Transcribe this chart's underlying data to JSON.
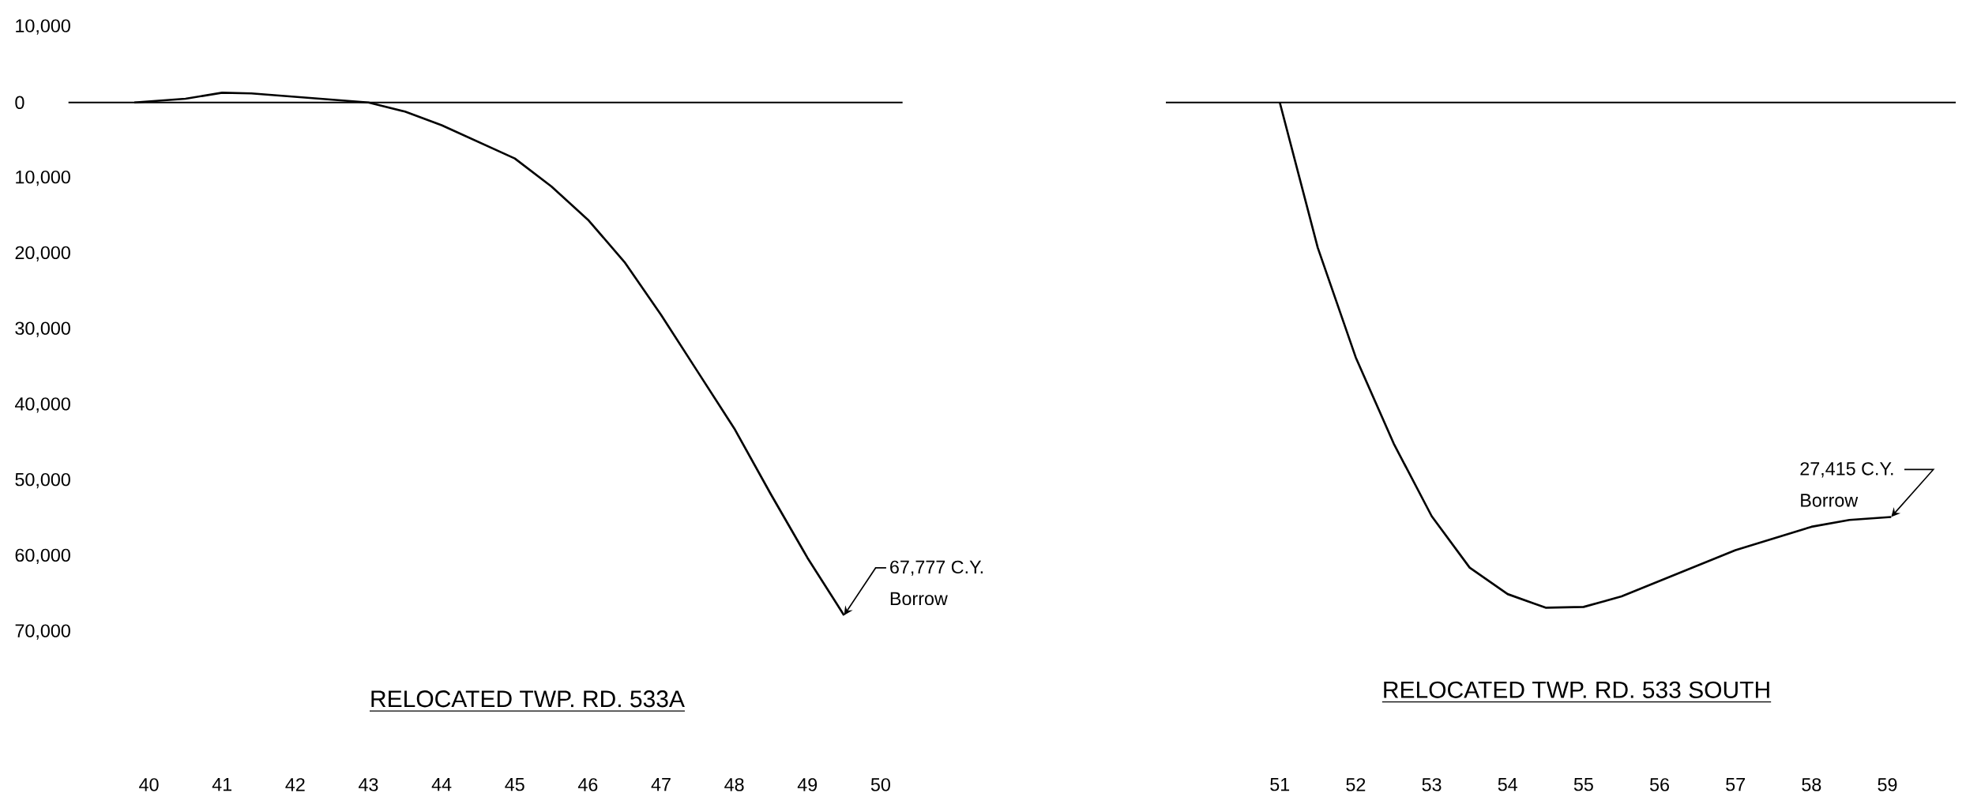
{
  "chart_data": [
    {
      "type": "line",
      "title": "RELOCATED TWP. RD. 533A",
      "x": [
        39.8,
        40.5,
        41.0,
        41.4,
        43.0,
        43.5,
        44.0,
        45.0,
        45.5,
        46.0,
        46.5,
        47.0,
        47.5,
        48.0,
        48.5,
        49.0,
        49.5
      ],
      "series": [
        {
          "color": "#000000",
          "values": [
            0,
            500,
            1300,
            1200,
            0,
            -1200,
            -3000,
            -7400,
            -11100,
            -15500,
            -21100,
            -28100,
            -35600,
            -43100,
            -51800,
            -60200,
            -67800
          ]
        }
      ],
      "xlim": [
        38.9,
        50.3
      ],
      "xticks": [
        40,
        41,
        42,
        43,
        44,
        45,
        46,
        47,
        48,
        49,
        50
      ],
      "ylim": [
        -70000,
        10000
      ],
      "yticks": [
        {
          "value": 10000,
          "label": "10,000"
        },
        0,
        {
          "value": -10000,
          "label": "10,000"
        },
        {
          "value": -20000,
          "label": "20,000"
        },
        {
          "value": -30000,
          "label": "30,000"
        },
        {
          "value": -40000,
          "label": "40,000"
        },
        {
          "value": -50000,
          "label": "50,000"
        },
        {
          "value": -60000,
          "label": "60,000"
        },
        {
          "value": -70000,
          "label": "70,000"
        }
      ],
      "ref_lines": [
        {
          "axis": "y",
          "value": 0
        }
      ],
      "annotations": [
        {
          "text": "67,777 C.Y. Borrow",
          "x": 49.5,
          "y": -67800
        }
      ]
    },
    {
      "type": "line",
      "title": "RELOCATED TWP. RD. 533 SOUTH",
      "x": [
        51.0,
        51.5,
        52.0,
        52.5,
        53.0,
        53.5,
        54.0,
        54.5,
        55.0,
        55.5,
        57.0,
        58.0,
        58.5,
        59.05
      ],
      "series": [
        {
          "color": "#000000",
          "values": [
            0,
            -19200,
            -33700,
            -45100,
            -54700,
            -61500,
            -65000,
            -66800,
            -66700,
            -65300,
            -59200,
            -56100,
            -55200,
            -54800
          ]
        }
      ],
      "xlim": [
        49.5,
        59.9
      ],
      "xticks": [
        51,
        52,
        53,
        54,
        55,
        56,
        57,
        58,
        59
      ],
      "ylim": [
        -70000,
        10000
      ],
      "yticks": [
        {
          "value": 10000,
          "label": null
        },
        {
          "value": 0,
          "label": null
        },
        {
          "value": -10000,
          "label": null
        },
        {
          "value": -20000,
          "label": null
        },
        {
          "value": -30000,
          "label": null
        },
        {
          "value": -40000,
          "label": null
        },
        {
          "value": -50000,
          "label": null
        },
        {
          "value": -60000,
          "label": null
        },
        {
          "value": -70000,
          "label": null
        }
      ],
      "tick_labels": "x",
      "ref_lines": [
        {
          "axis": "y",
          "value": 0
        }
      ],
      "annotations": [
        {
          "text": "27,415 C.Y. Borrow",
          "x": 59.05,
          "y": -54800
        }
      ]
    }
  ]
}
